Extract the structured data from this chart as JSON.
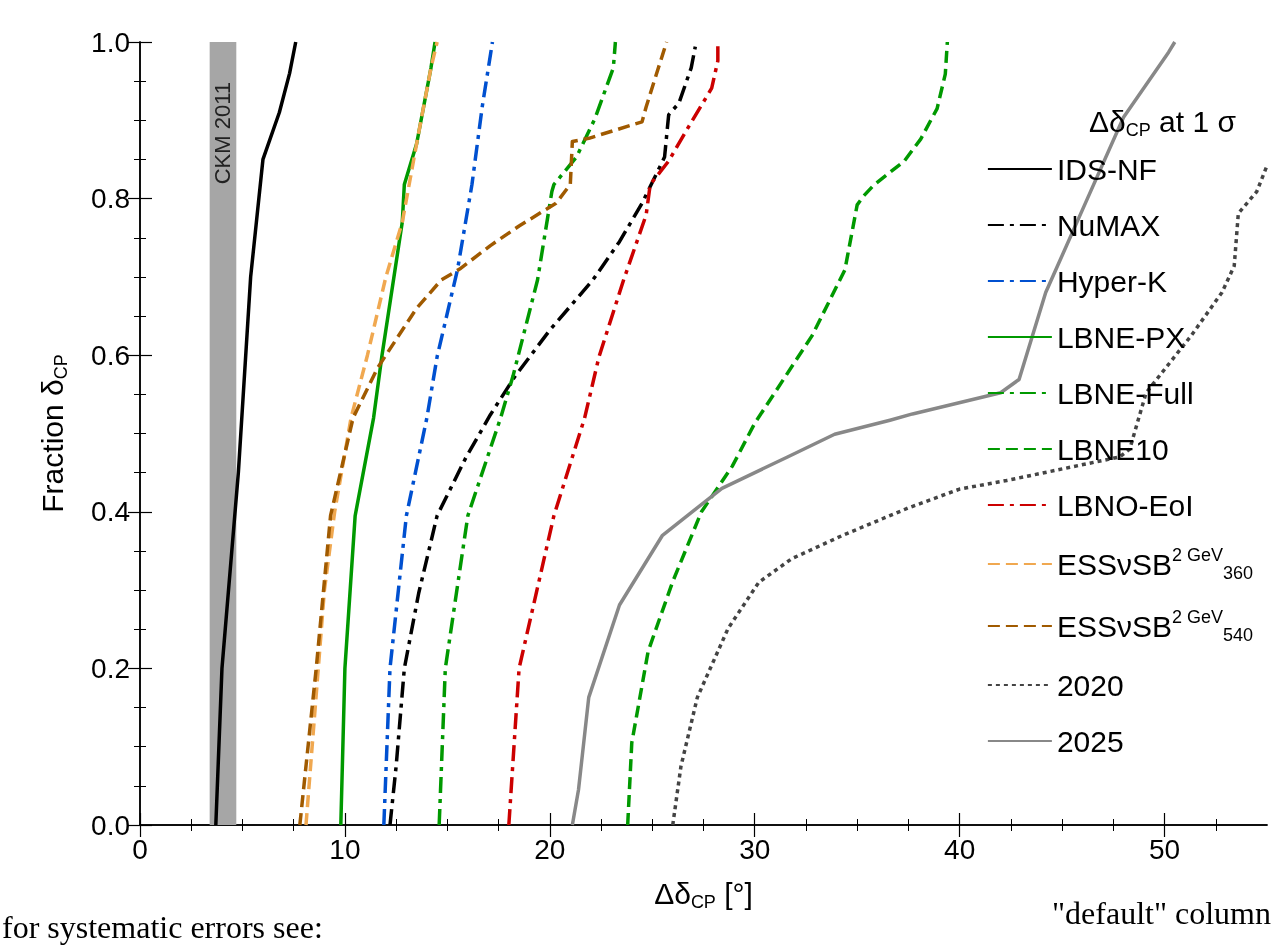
{
  "chart_data": {
    "type": "line",
    "xlabel": "Δδ$_{CP}$ [°]",
    "ylabel": "Fraction δ$_{CP}$",
    "legend_title": "Δδ$_{CP}$ at 1 σ",
    "xlim": [
      0,
      55
    ],
    "xticks": [
      0,
      10,
      20,
      30,
      40,
      50
    ],
    "ylim": [
      0,
      1
    ],
    "yticks": [
      {
        "value": 0,
        "label": "0.0"
      },
      {
        "value": 0.2,
        "label": "0.2"
      },
      {
        "value": 0.4,
        "label": "0.4"
      },
      {
        "value": 0.6,
        "label": "0.6"
      },
      {
        "value": 0.8,
        "label": "0.8"
      },
      {
        "value": 1,
        "label": "1.0"
      }
    ],
    "grid": false,
    "legend": "right",
    "marker": "none",
    "bands": [
      {
        "axis": "x",
        "from": 3.4,
        "to": 4.7,
        "label": "CKM 2011",
        "color": "#a6a6a6"
      }
    ],
    "annotations": [
      "for systematic errors see:",
      "\"default\" column"
    ],
    "series": [
      {
        "name": "IDS-NF",
        "color": "#000000",
        "line_style": "solid",
        "x": [
          3.7,
          4.0,
          4.8,
          5.4,
          6.0,
          6.8,
          7.3,
          7.6
        ],
        "values": [
          0,
          0.2,
          0.45,
          0.7,
          0.85,
          0.91,
          0.96,
          1.0
        ]
      },
      {
        "name": "NuMAX",
        "color": "#000000",
        "line_style": "dashdot",
        "x": [
          12.2,
          12.5,
          12.9,
          13.6,
          14.5,
          15.9,
          17.1,
          18.3,
          20.0,
          22.1,
          23.4,
          24.5,
          25.6,
          25.8,
          26.3,
          26.9,
          27.1
        ],
        "values": [
          0,
          0.075,
          0.2,
          0.296,
          0.395,
          0.469,
          0.524,
          0.573,
          0.632,
          0.696,
          0.745,
          0.794,
          0.853,
          0.907,
          0.922,
          0.967,
          0.994
        ]
      },
      {
        "name": "Hyper-K",
        "color": "#0050d0",
        "line_style": "dashdot",
        "x": [
          11.9,
          12.2,
          13.0,
          14.0,
          14.5,
          15.5,
          16.2,
          16.7,
          17.2
        ],
        "values": [
          0,
          0.2,
          0.395,
          0.52,
          0.598,
          0.71,
          0.818,
          0.917,
          1.0
        ]
      },
      {
        "name": "LBNE-PX",
        "color": "#009900",
        "line_style": "solid",
        "x": [
          9.8,
          10.0,
          10.5,
          11.4,
          11.8,
          12.8,
          12.9,
          13.5,
          14.2,
          14.4
        ],
        "values": [
          0,
          0.2,
          0.395,
          0.52,
          0.598,
          0.77,
          0.818,
          0.87,
          0.967,
          1.0
        ]
      },
      {
        "name": "LBNE-Full",
        "color": "#009900",
        "line_style": "dashdot",
        "x": [
          14.6,
          14.9,
          16.0,
          17.6,
          18.2,
          19.4,
          20.1,
          20.2,
          21.3,
          22.2,
          23.1,
          23.2
        ],
        "values": [
          0,
          0.2,
          0.395,
          0.52,
          0.573,
          0.696,
          0.809,
          0.818,
          0.853,
          0.902,
          0.967,
          1.0
        ]
      },
      {
        "name": "LBNE10",
        "color": "#009900",
        "line_style": "dashed",
        "x": [
          23.8,
          24.0,
          24.8,
          26.0,
          27.4,
          28.9,
          30.0,
          32.8,
          34.4,
          35.0,
          35.3,
          35.8,
          37.3,
          38.1,
          38.9,
          39.3,
          39.4
        ],
        "values": [
          0,
          0.105,
          0.222,
          0.311,
          0.4,
          0.458,
          0.513,
          0.625,
          0.709,
          0.792,
          0.803,
          0.817,
          0.848,
          0.876,
          0.915,
          0.959,
          1.0
        ]
      },
      {
        "name": "LBNO-EoI",
        "color": "#cc0000",
        "line_style": "dashdot",
        "x": [
          18.0,
          18.5,
          20.2,
          21.7,
          22.4,
          23.6,
          24.7,
          24.9,
          25.8,
          26.8,
          27.9,
          28.2,
          28.2
        ],
        "values": [
          0,
          0.2,
          0.395,
          0.52,
          0.598,
          0.696,
          0.779,
          0.818,
          0.848,
          0.893,
          0.941,
          0.976,
          1.0
        ]
      },
      {
        "name": "ESSνSB$^{2 GeV}$$_{360}$",
        "color": "#f0a850",
        "line_style": "dashed",
        "x": [
          8.1,
          8.4,
          8.7,
          9.0,
          9.5,
          10.3,
          11.1,
          12.0,
          12.8,
          13.5,
          14.2,
          14.5
        ],
        "values": [
          0,
          0.1,
          0.2,
          0.3,
          0.4,
          0.52,
          0.6,
          0.7,
          0.77,
          0.87,
          0.967,
          1.0
        ]
      },
      {
        "name": "ESSνSB$^{2 GeV}$$_{540}$",
        "color": "#a05a00",
        "line_style": "dashed",
        "x": [
          7.8,
          8.6,
          9.3,
          10.4,
          11.6,
          13.5,
          14.7,
          15.6,
          17.1,
          18.5,
          20.3,
          21.0,
          21.1,
          21.9,
          24.5,
          24.7,
          25.3,
          25.7
        ],
        "values": [
          0,
          0.2,
          0.395,
          0.52,
          0.584,
          0.66,
          0.696,
          0.71,
          0.74,
          0.765,
          0.794,
          0.818,
          0.873,
          0.877,
          0.898,
          0.917,
          0.967,
          1.0
        ]
      },
      {
        "name": "2020",
        "color": "#444444",
        "line_style": "dotted",
        "x": [
          26.0,
          26.4,
          27.2,
          28.7,
          30.2,
          31.8,
          34.3,
          37.5,
          40.0,
          42.3,
          47.8,
          48.3,
          49.1,
          51.3,
          52.8,
          53.4,
          53.6,
          54.5,
          55.0
        ],
        "values": [
          0,
          0.075,
          0.163,
          0.251,
          0.31,
          0.34,
          0.37,
          0.405,
          0.429,
          0.44,
          0.47,
          0.48,
          0.552,
          0.625,
          0.68,
          0.714,
          0.781,
          0.809,
          0.842
        ]
      },
      {
        "name": "2025",
        "color": "#888888",
        "line_style": "solid",
        "x": [
          21.1,
          21.4,
          21.9,
          23.4,
          25.5,
          28.4,
          31.6,
          33.9,
          36.6,
          37.7,
          42.0,
          42.9,
          44.2,
          46.1,
          48.0,
          50.2,
          50.5
        ],
        "values": [
          0,
          0.045,
          0.163,
          0.281,
          0.37,
          0.43,
          0.47,
          0.499,
          0.517,
          0.525,
          0.552,
          0.569,
          0.68,
          0.792,
          0.904,
          0.987,
          1.0
        ]
      }
    ]
  }
}
